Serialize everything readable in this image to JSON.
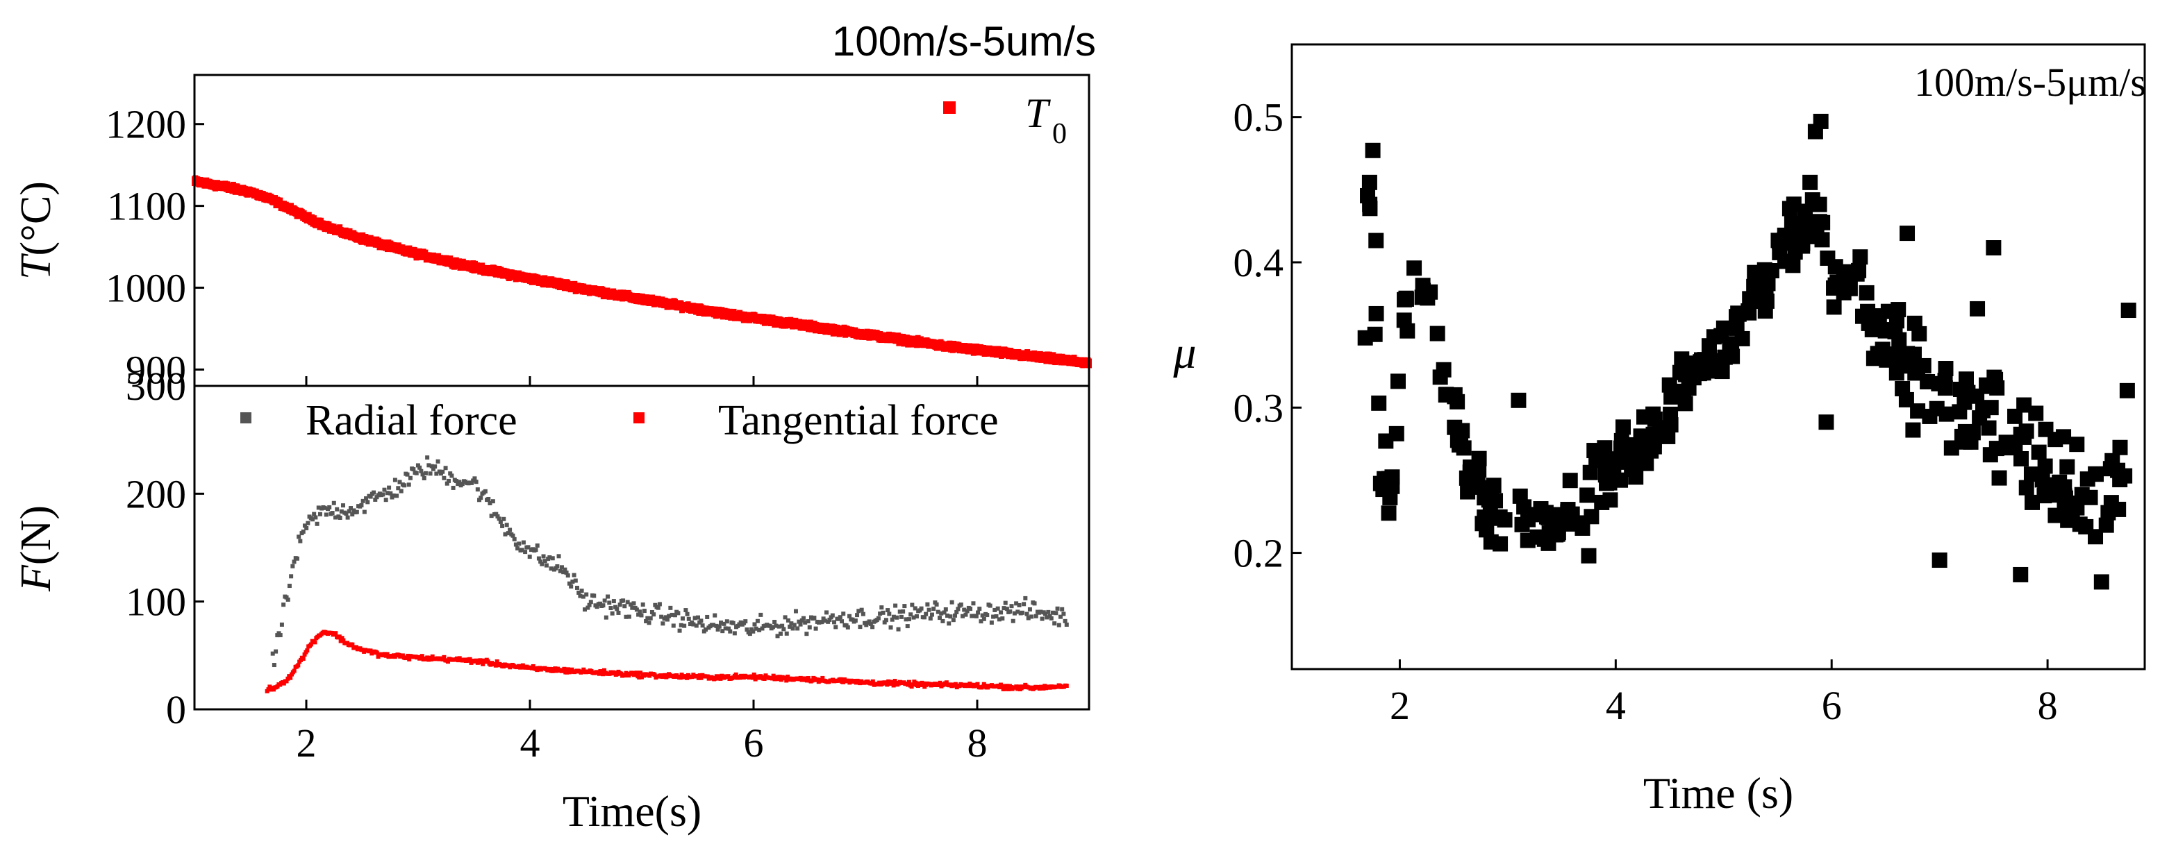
{
  "chart_data": [
    {
      "id": "temperature",
      "type": "scatter",
      "title": "100m/s-5um/s",
      "xlabel": "",
      "ylabel_italic": "T",
      "ylabel_rest": "(°C)",
      "xlim": [
        1,
        9
      ],
      "ylim": [
        880,
        1260
      ],
      "yticks": [
        900,
        1000,
        1100,
        1200
      ],
      "ytick_labels": [
        "900",
        "1000",
        "1100",
        "1200"
      ],
      "xticks": [
        2,
        4,
        6,
        8
      ],
      "xtick_labels": [
        "2",
        "4",
        "6",
        "8"
      ],
      "grid": false,
      "legend": {
        "position": "top-right",
        "entries": [
          {
            "name": "T",
            "subscript": "0",
            "color": "#ff0000"
          }
        ]
      },
      "series": [
        {
          "name": "T0",
          "color": "#ff0000",
          "x": [
            1.0,
            1.25,
            1.5,
            1.7,
            2.0,
            2.25,
            2.5,
            2.75,
            3.0,
            3.25,
            3.5,
            3.75,
            4.0,
            4.25,
            4.5,
            4.75,
            5.0,
            5.25,
            5.5,
            5.75,
            6.0,
            6.25,
            6.5,
            6.75,
            7.0,
            7.25,
            7.5,
            7.75,
            8.0,
            8.25,
            8.5,
            8.75,
            9.0
          ],
          "y": [
            1130,
            1124,
            1117,
            1107,
            1086,
            1071,
            1060,
            1050,
            1041,
            1033,
            1025,
            1018,
            1011,
            1005,
            998,
            992,
            986,
            980,
            974,
            968,
            963,
            958,
            953,
            948,
            943,
            938,
            933,
            928,
            924,
            920,
            916,
            912,
            908
          ]
        }
      ]
    },
    {
      "id": "force",
      "type": "scatter",
      "xlabel": "Time(s)",
      "ylabel_italic": "F",
      "ylabel_rest": "(N)",
      "xlim": [
        1,
        9
      ],
      "ylim": [
        0,
        300
      ],
      "yticks": [
        0,
        100,
        200,
        300
      ],
      "ytick_labels": [
        "0",
        "100",
        "200",
        "300"
      ],
      "xticks": [
        2,
        4,
        6,
        8
      ],
      "xtick_labels": [
        "2",
        "4",
        "6",
        "8"
      ],
      "grid": false,
      "legend": {
        "position": "top",
        "entries": [
          {
            "name": "Radial force",
            "color": "#555555"
          },
          {
            "name": "Tangential force",
            "color": "#ff0000"
          }
        ]
      },
      "series": [
        {
          "name": "Radial force",
          "color": "#555555",
          "x": [
            1.7,
            1.8,
            1.9,
            2.0,
            2.1,
            2.2,
            2.4,
            2.6,
            2.8,
            3.0,
            3.1,
            3.3,
            3.5,
            3.7,
            3.9,
            4.1,
            4.3,
            4.5,
            4.8,
            5.0,
            5.3,
            5.6,
            6.0,
            6.4,
            6.8,
            7.2,
            7.6,
            8.0,
            8.4,
            8.8
          ],
          "y": [
            40,
            90,
            140,
            170,
            180,
            185,
            185,
            195,
            205,
            220,
            225,
            215,
            210,
            180,
            155,
            140,
            130,
            100,
            95,
            90,
            85,
            78,
            75,
            80,
            85,
            85,
            90,
            90,
            92,
            85
          ],
          "noise": 14
        },
        {
          "name": "Tangential force",
          "color": "#ff0000",
          "x": [
            1.65,
            1.75,
            1.85,
            1.95,
            2.05,
            2.15,
            2.25,
            2.35,
            2.5,
            2.7,
            3.0,
            3.5,
            4.0,
            4.5,
            5.0,
            5.5,
            6.0,
            6.5,
            7.0,
            7.5,
            8.0,
            8.5,
            8.8
          ],
          "y": [
            18,
            22,
            30,
            45,
            62,
            72,
            70,
            62,
            55,
            50,
            48,
            45,
            38,
            35,
            32,
            30,
            30,
            28,
            25,
            23,
            22,
            20,
            22
          ],
          "noise": 3
        }
      ]
    },
    {
      "id": "friction",
      "type": "scatter",
      "title": "100m/s-5μm/s",
      "xlabel": "Time (s)",
      "ylabel": "μ",
      "xlim": [
        1,
        8.9
      ],
      "ylim": [
        0.12,
        0.55
      ],
      "yticks": [
        0.2,
        0.3,
        0.4,
        0.5
      ],
      "ytick_labels": [
        "0.2",
        "0.3",
        "0.4",
        "0.5"
      ],
      "xticks": [
        2,
        4,
        6,
        8
      ],
      "xtick_labels": [
        "2",
        "4",
        "6",
        "8"
      ],
      "grid": false,
      "series": [
        {
          "name": "μ",
          "color": "#000000",
          "x": [
            1.7,
            1.75,
            1.8,
            1.85,
            1.9,
            1.95,
            2.0,
            2.05,
            2.1,
            2.15,
            2.2,
            2.3,
            2.4,
            2.5,
            2.6,
            2.7,
            2.8,
            2.9,
            3.0,
            3.1,
            3.2,
            3.3,
            3.4,
            3.5,
            3.6,
            3.7,
            3.8,
            3.9,
            4.0,
            4.2,
            4.4,
            4.6,
            4.8,
            5.0,
            5.2,
            5.4,
            5.6,
            5.8,
            5.9,
            6.0,
            6.2,
            6.4,
            6.6,
            6.8,
            7.0,
            7.2,
            7.4,
            7.6,
            7.8,
            8.0,
            8.2,
            8.4,
            8.6,
            8.75
          ],
          "y": [
            0.46,
            0.42,
            0.3,
            0.25,
            0.22,
            0.28,
            0.35,
            0.37,
            0.38,
            0.39,
            0.38,
            0.36,
            0.33,
            0.3,
            0.27,
            0.25,
            0.23,
            0.22,
            0.225,
            0.22,
            0.22,
            0.22,
            0.22,
            0.225,
            0.23,
            0.24,
            0.25,
            0.25,
            0.26,
            0.27,
            0.29,
            0.31,
            0.33,
            0.34,
            0.36,
            0.39,
            0.42,
            0.43,
            0.42,
            0.4,
            0.37,
            0.35,
            0.34,
            0.32,
            0.31,
            0.3,
            0.3,
            0.29,
            0.27,
            0.26,
            0.25,
            0.24,
            0.24,
            0.28
          ],
          "noise": 0.035,
          "extra_points": [
            {
              "x": 1.75,
              "y": 0.477
            },
            {
              "x": 1.72,
              "y": 0.455
            },
            {
              "x": 1.68,
              "y": 0.348
            },
            {
              "x": 1.78,
              "y": 0.415
            },
            {
              "x": 5.85,
              "y": 0.49
            },
            {
              "x": 5.9,
              "y": 0.497
            },
            {
              "x": 5.8,
              "y": 0.455
            },
            {
              "x": 5.65,
              "y": 0.44
            },
            {
              "x": 7.0,
              "y": 0.195
            },
            {
              "x": 8.5,
              "y": 0.18
            },
            {
              "x": 7.75,
              "y": 0.185
            },
            {
              "x": 8.75,
              "y": 0.367
            },
            {
              "x": 3.1,
              "y": 0.305
            },
            {
              "x": 3.75,
              "y": 0.198
            },
            {
              "x": 5.95,
              "y": 0.29
            },
            {
              "x": 6.7,
              "y": 0.42
            },
            {
              "x": 7.5,
              "y": 0.41
            },
            {
              "x": 7.35,
              "y": 0.368
            }
          ]
        }
      ]
    }
  ]
}
